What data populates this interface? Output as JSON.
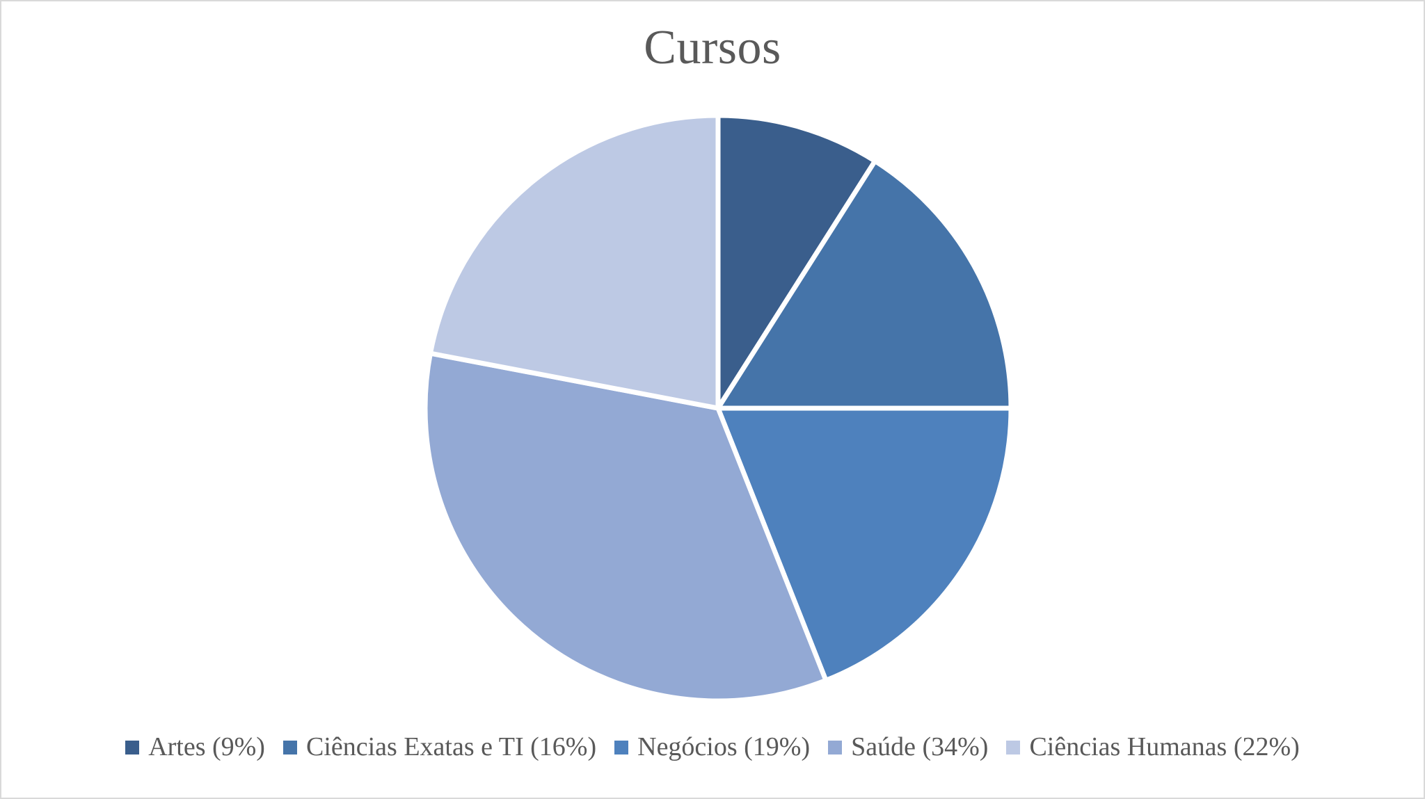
{
  "canvas": {
    "background": "#FFFFFF",
    "border_color": "#D9D9D9"
  },
  "chart_data": {
    "type": "pie",
    "title": "Cursos",
    "title_color": "#595959",
    "start_angle_deg": -90,
    "direction": "clockwise",
    "legend_position": "bottom",
    "legend_text_color": "#595959",
    "separator_color": "#FFFFFF",
    "categories": [
      "Artes",
      "Ciências Exatas e TI",
      "Negócios",
      "Saúde",
      "Ciências Humanas"
    ],
    "values": [
      9,
      16,
      19,
      34,
      22
    ],
    "unit": "percent",
    "slices": [
      {
        "label": "Artes",
        "percent": 9,
        "color": "#3A5E8C",
        "legend_label": "Artes (9%)"
      },
      {
        "label": "Ciências Exatas e TI",
        "percent": 16,
        "color": "#4574A9",
        "legend_label": "Ciências Exatas e TI (16%)"
      },
      {
        "label": "Negócios",
        "percent": 19,
        "color": "#4E81BD",
        "legend_label": "Negócios (19%)"
      },
      {
        "label": "Saúde",
        "percent": 34,
        "color": "#93A9D4",
        "legend_label": "Saúde (34%)"
      },
      {
        "label": "Ciências Humanas",
        "percent": 22,
        "color": "#BDC9E4",
        "legend_label": "Ciências Humanas (22%)"
      }
    ]
  }
}
